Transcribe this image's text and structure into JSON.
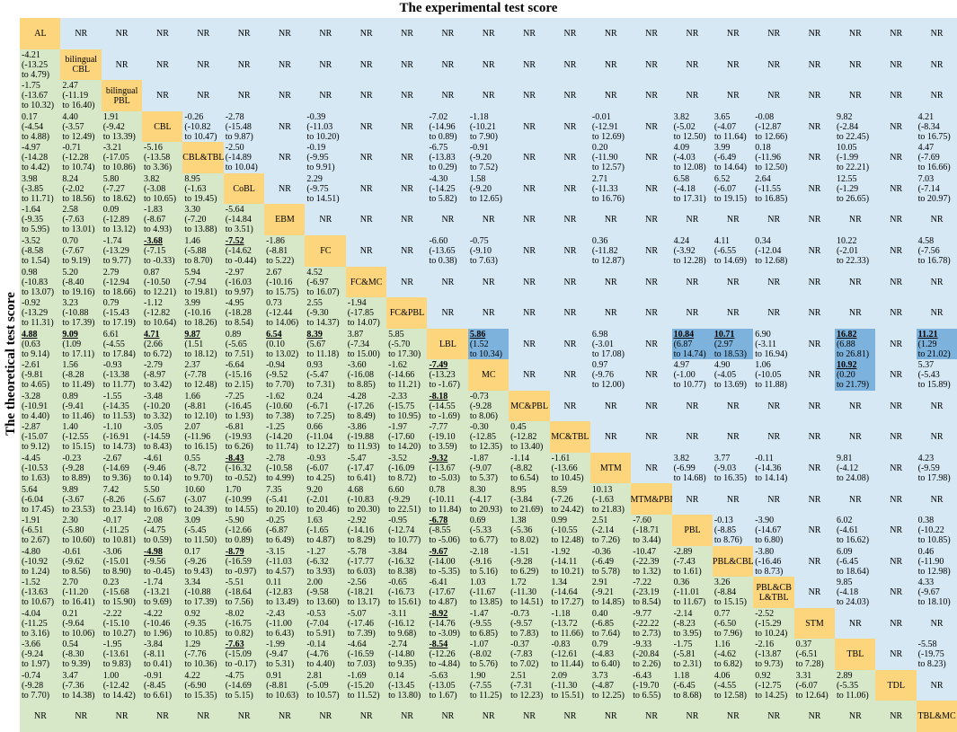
{
  "title": "The experimental test score",
  "ylabel": "The theoretical test score",
  "colors": {
    "diagonal": "#fcd57d",
    "upper": "#d5e8f4",
    "lower": "#d7e8c9",
    "highlight": "#7db2dc"
  },
  "chart_data": {
    "type": "table",
    "treatments": [
      "AL",
      "bilingual CBL",
      "bilingual PBL",
      "CBL",
      "CBL&TBL",
      "CoBL",
      "EBM",
      "FC",
      "FC&MC",
      "FC&PBL",
      "LBL",
      "MC",
      "MC&PBL",
      "MC&TBL",
      "MTM",
      "MTM&PBI",
      "PBL",
      "PBL&CBL",
      "PBL&CBL&TBL",
      "STM",
      "TBL",
      "TDL",
      "TBL&MC"
    ],
    "diagonal_labels": [
      "AL",
      "bilingual\nCBL",
      "bilingual\nPBL",
      "CBL",
      "CBL&TBL",
      "CoBL",
      "EBM",
      "FC",
      "FC&MC",
      "FC&PBL",
      "LBL",
      "MC",
      "MC&PBL",
      "MC&TBL",
      "MTM",
      "MTM&PBI",
      "PBL",
      "PBL&CBL",
      "PBL&CB\nL&TBL",
      "STM",
      "TBL",
      "TDL",
      "TBL&MC"
    ],
    "cells": [
      [
        "AL",
        "NR",
        "NR",
        "NR",
        "NR",
        "NR",
        "NR",
        "NR",
        "NR",
        "NR",
        "NR",
        "NR",
        "NR",
        "NR",
        "NR",
        "NR",
        "NR",
        "NR",
        "NR",
        "NR",
        "NR",
        "NR",
        "NR"
      ],
      [
        "-4.21\n(-13.25\nto 4.79)",
        "bilingual CBL",
        "NR",
        "NR",
        "NR",
        "NR",
        "NR",
        "NR",
        "NR",
        "NR",
        "NR",
        "NR",
        "NR",
        "NR",
        "NR",
        "NR",
        "NR",
        "NR",
        "NR",
        "NR",
        "NR",
        "NR",
        "NR"
      ],
      [
        "-1.75\n(-13.67\nto 10.32)",
        "2.47\n(-11.19\nto 16.40)",
        "bilingual PBL",
        "NR",
        "NR",
        "NR",
        "NR",
        "NR",
        "NR",
        "NR",
        "NR",
        "NR",
        "NR",
        "NR",
        "NR",
        "NR",
        "NR",
        "NR",
        "NR",
        "NR",
        "NR",
        "NR",
        "NR"
      ],
      [
        "0.17\n(-4.54\nto 4.88)",
        "4.40\n(-3.57\nto 12.49)",
        "1.91\n(-9.42\nto 13.39)",
        "CBL",
        "-0.26\n(-10.82\nto 10.47)",
        "-2.78\n(-15.48\nto 9.87)",
        "NR",
        "-0.39\n(-11.03\nto 10.20)",
        "NR",
        "NR",
        "-7.02\n(-14.96\nto 0.89)",
        "-1.18\n(-10.21\nto 7.90)",
        "NR",
        "NR",
        "-0.01\n(-12.91\nto 12.69)",
        "NR",
        "3.82\n(-5.02\nto 12.50)",
        "3.65\n(-4.07\nto 11.64)",
        "-0.08\n(-12.87\nto 12.66)",
        "NR",
        "9.82\n(-2.84\nto 22.45)",
        "NR",
        "4.21\n(-8.34\nto 16.75)"
      ],
      [
        "-4.97\n(-14.28\nto 4.42)",
        "-0.71\n(-12.28\nto 10.74)",
        "-3.21\n(-17.05\nto 10.86)",
        "-5.16\n(-13.58\nto 3.36)",
        "CBL&TBL",
        "-2.50\n(-14.89\nto 10.04)",
        "NR",
        "-0.19\n(-9.95\nto 9.91)",
        "NR",
        "NR",
        "-6.75\n(-13.83\nto 0.29)",
        "-0.91\n(-9.20\nto 7.52)",
        "NR",
        "NR",
        "0.20\n(-11.90\nto 12.57)",
        "NR",
        "4.09\n(-4.03\nto 12.08)",
        "3.99\n(-6.49\nto 14.64)",
        "0.18\n(-11.96\nto 12.50)",
        "NR",
        "10.05\n(-1.99\nto 22.21)",
        "NR",
        "4.47\n(-7.69\nto 16.66)"
      ],
      [
        "3.98\n(-3.85\nto 11.71)",
        "8.24\n(-2.02\nto 18.56)",
        "5.80\n(-7.27\nto 18.62)",
        "3.82\n(-3.08\nto 10.65)",
        "8.95\n(-1.63\nto 19.45)",
        "CoBL",
        "NR",
        "2.29\n(-9.75\nto 14.51)",
        "NR",
        "NR",
        "-4.30\n(-14.25\nto 5.82)",
        "1.58\n(-9.20\nto 12.65)",
        "NR",
        "NR",
        "2.71\n(-11.33\nto 16.76)",
        "NR",
        "6.58\n(-4.18\nto 17.31)",
        "6.52\n(-6.07\nto 19.15)",
        "2.64\n(-11.55\nto 16.85)",
        "NR",
        "12.55\n(-1.29\nto 26.65)",
        "NR",
        "7.03\n(-7.14\nto 20.97)"
      ],
      [
        "-1.64\n(-9.35\nto 5.95)",
        "2.58\n(-7.63\nto 13.01)",
        "0.09\n(-12.89\nto 13.12)",
        "-1.83\n(-8.67\nto 4.93)",
        "3.30\n(-7.20\nto 13.88)",
        "-5.64\n(-14.84\nto 3.51)",
        "EBM",
        "NR",
        "NR",
        "NR",
        "NR",
        "NR",
        "NR",
        "NR",
        "NR",
        "NR",
        "NR",
        "NR",
        "NR",
        "NR",
        "NR",
        "NR",
        "NR"
      ],
      [
        "-3.52\n(-8.58\nto 1.54)",
        "0.70\n(-7.67\nto 9.19)",
        "-1.74\n(-13.29\nto 9.77)",
        "*-3.68\n(-7.15\nto -0.33)",
        "1.46\n(-5.88\nto 8.70)",
        "*-7.52\n(-14.62\nto -0.44)",
        "-1.86\n(-8.81\nto 5.22)",
        "FC",
        "NR",
        "NR",
        "-6.60\n(-13.65\nto 0.38)",
        "-0.75\n(-9.10\nto 7.63)",
        "NR",
        "NR",
        "0.36\n(-11.82\nto 12.87)",
        "NR",
        "4.24\n(-3.92\nto 12.28)",
        "4.11\n(-6.55\nto 14.69)",
        "0.34\n(-12.04\nto 12.68)",
        "NR",
        "10.22\n(-2.01\nto 22.33)",
        "NR",
        "4.58\n(-7.56\nto 16.78)"
      ],
      [
        "0.98\n(-10.83\nto 13.07)",
        "5.20\n(-8.40\nto 19.16)",
        "2.79\n(-12.94\nto 18.66)",
        "0.87\n(-10.50\nto 12.21)",
        "5.94\n(-7.94\nto 19.81)",
        "-2.97\n(-16.03\nto 9.97)",
        "2.67\n(-10.16\nto 15.75)",
        "4.52\n(-6.97\nto 16.07)",
        "FC&MC",
        "NR",
        "NR",
        "NR",
        "NR",
        "NR",
        "NR",
        "NR",
        "NR",
        "NR",
        "NR",
        "NR",
        "NR",
        "NR",
        "NR"
      ],
      [
        "-0.92\n(-13.29\nto 11.31)",
        "3.23\n(-10.88\nto 17.39)",
        "0.79\n(-15.43\nto 17.19)",
        "-1.12\n(-12.82\nto 10.64)",
        "3.99\n(-10.16\nto 18.26)",
        "-4.95\n(-18.28\nto 8.54)",
        "0.73\n(-12.44\nto 14.06)",
        "2.55\n(-9.30\nto 14.37)",
        "-1.94\n(-17.85\nto 14.07)",
        "FC&PBL",
        "NR",
        "NR",
        "NR",
        "NR",
        "NR",
        "NR",
        "NR",
        "NR",
        "NR",
        "NR",
        "NR",
        "NR",
        "NR"
      ],
      [
        "*4.88\n(0.63\nto 9.14)",
        "*9.09\n(1.09\nto 17.11)",
        "6.61\n(-4.55\nto 17.84)",
        "*4.71\n(2.66\nto 6.72)",
        "*9.87\n(1.51\nto 18.12)",
        "0.89\n(-5.65\nto 7.51)",
        "*6.54\n(0.10\nto 13.02)",
        "*8.39\n(5.67\nto 11.18)",
        "3.87\n(-7.34\nto 15.00)",
        "5.85\n(-5.70\nto 17.30)",
        "LBL",
        "#5.86\n(1.52\nto 10.34)",
        "NR",
        "NR",
        "6.98\n(-3.01\nto 17.08)",
        "NR",
        "#10.84\n(6.87\nto 14.74)",
        "#10.71\n(2.97\nto 18.53)",
        "6.90\n(-3.11\nto 16.94)",
        "NR",
        "#16.82\n(6.88\nto 26.81)",
        "NR",
        "#11.21\n(1.29\nto 21.02)"
      ],
      [
        "-2.61\n(-9.81\nto 4.65)",
        "1.56\n(-8.28\nto 11.49)",
        "-0.93\n(-13.38\nto 11.77)",
        "-2.79\n(-8.97\nto 3.42)",
        "2.37\n(-7.78\nto 12.48)",
        "-6.64\n(-15.16\nto 2.15)",
        "-0.94\n(-9.52\nto 7.70)",
        "0.93\n(-5.47\nto 7.31)",
        "-3.60\n(-16.08\nto 8.85)",
        "-1.62\n(-14.66\nto 11.21)",
        "*-7.49\n(-13.23\nto -1.67)",
        "MC",
        "NR",
        "NR",
        "0.97\n(-9.76\nto 12.00)",
        "NR",
        "4.97\n(-1.00\nto 10.77)",
        "4.90\n(-4.05\nto 13.69)",
        "1.06\n(-10.05\nto 11.88)",
        "NR",
        "#10.92\n(0.20\nto 21.79)",
        "NR",
        "5.37\n(-5.43\nto 15.89)"
      ],
      [
        "-3.28\n(-10.91\nto 4.40)",
        "0.89\n(-9.41\nto 11.46)",
        "-1.55\n(-14.35\nto 11.53)",
        "-3.48\n(-10.20\nto 3.32)",
        "1.66\n(-8.81\nto 12.10)",
        "-7.25\n(-16.45\nto 1.93)",
        "-1.62\n(-10.60\nto 7.38)",
        "0.24\n(-6.71\nto 7.25)",
        "-4.28\n(-17.26\nto 8.49)",
        "-2.33\n(-15.75\nto 10.95)",
        "*-8.18\n(-14.55\nto -1.69)",
        "-0.73\n(-9.28\nto 8.06)",
        "MC&PBL",
        "NR",
        "NR",
        "NR",
        "NR",
        "NR",
        "NR",
        "NR",
        "NR",
        "NR",
        "NR"
      ],
      [
        "-2.87\n(-15.07\nto 9.12)",
        "1.40\n(-12.55\nto 15.15)",
        "-1.10\n(-16.91\nto 14.73)",
        "-3.05\n(-14.59\nto 8.43)",
        "2.07\n(-11.96\nto 16.15)",
        "-6.81\n(-19.93\nto 6.26)",
        "-1.25\n(-14.20\nto 11.74)",
        "0.66\n(-11.04\nto 12.27)",
        "-3.86\n(-19.88\nto 11.93)",
        "-1.97\n(-17.60\nto 14.20)",
        "-7.77\n(-19.10\nto 3.59)",
        "-0.30\n(-12.85\nto 12.35)",
        "0.45\n(-12.82\nto 13.40)",
        "MC&TBL",
        "NR",
        "NR",
        "NR",
        "NR",
        "NR",
        "NR",
        "NR",
        "NR",
        "NR"
      ],
      [
        "-4.45\n(-10.53\nto 1.63)",
        "-0.23\n(-9.28\nto 8.89)",
        "-2.67\n(-14.69\nto 9.36)",
        "-4.61\n(-9.46\nto 0.14)",
        "0.55\n(-8.72\nto 9.70)",
        "*-8.43\n(-16.32\nto -0.52)",
        "-2.78\n(-10.58\nto 4.99)",
        "-0.93\n(-6.07\nto 4.25)",
        "-5.47\n(-17.47\nto 6.41)",
        "-3.52\n(-16.09\nto 8.72)",
        "*-9.32\n(-13.67\nto -5.03)",
        "-1.87\n(-9.07\nto 5.37)",
        "-1.14\n(-8.82\nto 6.54)",
        "-1.61\n(-13.66\nto 10.45)",
        "MTM",
        "NR",
        "3.82\n(-6.99\nto 14.68)",
        "3.77\n(-9.03\nto 16.35)",
        "-0.11\n(-14.36\nto 14.14)",
        "NR",
        "9.81\n(-4.12\nto 24.08)",
        "NR",
        "4.23\n(-9.59\nto 17.98)"
      ],
      [
        "5.64\n(-6.04\nto 17.45)",
        "9.89\n(-3.67\nto 23.53)",
        "7.42\n(-8.26\nto 23.14)",
        "5.50\n(-5.67\nto 16.67)",
        "10.60\n(-3.07\nto 24.39)",
        "1.70\n(-10.99\nto 14.55)",
        "7.35\n(-5.41\nto 20.10)",
        "9.20\n(-2.01\nto 20.46)",
        "4.68\n(-10.83\nto 20.30)",
        "6.60\n(-9.29\nto 22.51)",
        "0.78\n(-10.11\nto 11.84)",
        "8.30\n(-4.17\nto 20.93)",
        "8.95\n(-3.84\nto 21.69)",
        "8.59\n(-7.26\nto 24.42)",
        "10.13\n(-1.63\nto 21.83)",
        "MTM&PBI",
        "NR",
        "NR",
        "NR",
        "NR",
        "NR",
        "NR",
        "NR"
      ],
      [
        "-1.91\n(-6.51\nto 2.67)",
        "2.30\n(-5.80\nto 10.60)",
        "-0.17\n(-11.25\nto 10.81)",
        "-2.08\n(-4.75\nto 0.59)",
        "3.09\n(-5.45\nto 11.50)",
        "-5.90\n(-12.66\nto 0.89)",
        "-0.25\n(-6.87\nto 6.49)",
        "1.63\n(-1.65\nto 4.87)",
        "-2.92\n(-14.16\nto 8.29)",
        "-0.95\n(-12.74\nto 10.77)",
        "*-6.78\n(-8.55\nto -5.06)",
        "0.69\n(-5.33\nto 6.77)",
        "1.38\n(-5.36\nto 8.02)",
        "0.99\n(-10.55\nto 12.48)",
        "2.51\n(-2.14\nto 7.26)",
        "-7.60\n(-18.71\nto 3.44)",
        "PBL",
        "-0.13\n(-8.85\nto 8.76)",
        "-3.90\n(-14.67\nto 6.80)",
        "NR",
        "6.02\n(-4.61\nto 16.62)",
        "NR",
        "0.38\n(-10.22\nto 10.85)"
      ],
      [
        "-4.80\n(-10.92\nto 1.24)",
        "-0.61\n(-9.62\nto 8.56)",
        "-3.06\n(-15.01\nto 8.90)",
        "*-4.98\n(-9.56\nto -0.45)",
        "0.17\n(-9.26\nto 9.43)",
        "*-8.79\n(-16.59\nto -0.97)",
        "-3.15\n(-11.03\nto 4.57)",
        "-1.27\n(-6.32\nto 3.93)",
        "-5.78\n(-17.77\nto 6.03)",
        "-3.84\n(-16.32\nto 8.38)",
        "*-9.67\n(-14.00\nto -5.35)",
        "-2.18\n(-9.16\nto 5.16)",
        "-1.51\n(-9.28\nto 6.29)",
        "-1.92\n(-14.11\nto 10.21)",
        "-0.36\n(-6.49\nto 5.78)",
        "-10.47\n(-22.39\nto 1.32)",
        "-2.89\n(-7.43\nto 1.61)",
        "PBL&CBL",
        "-3.80\n(-16.46\nto 8.73)",
        "NR",
        "6.09\n(-6.45\nto 18.64)",
        "NR",
        "0.46\n(-11.90\nto 12.98)"
      ],
      [
        "-1.52\n(-13.63\nto 10.67)",
        "2.70\n(-11.20\nto 16.41)",
        "0.23\n(-15.68\nto 15.90)",
        "-1.74\n(-13.21\nto 9.69)",
        "3.34\n(-10.88\nto 17.39)",
        "-5.51\n(-18.64\nto 7.56)",
        "0.11\n(-12.83\nto 13.49)",
        "2.00\n(-9.58\nto 13.60)",
        "-2.56\n(-18.21\nto 13.17)",
        "-0.65\n(-16.73\nto 15.61)",
        "-6.41\n(-17.67\nto 4.87)",
        "1.03\n(-11.67\nto 13.85)",
        "1.72\n(-11.30\nto 14.51)",
        "1.34\n(-14.64\nto 17.27)",
        "2.91\n(-9.21\nto 14.85)",
        "-7.22\n(-23.19\nto 8.54)",
        "0.36\n(-11.01\nto 11.67)",
        "3.26\n(-8.84\nto 15.15)",
        "PBL&CBL&TBL",
        "NR",
        "9.85\n(-4.18\nto 24.03)",
        "NR",
        "4.33\n(-9.67\nto 18.10)"
      ],
      [
        "-4.04\n(-11.25\nto 3.16)",
        "0.21\n(-9.64\nto 10.06)",
        "-2.22\n(-15.10\nto 10.27)",
        "-4.22\n(-10.46\nto 1.96)",
        "0.92\n(-9.35\nto 10.85)",
        "-8.02\n(-16.75\nto 0.82)",
        "-2.43\n(-11.00\nto 6.43)",
        "-0.53\n(-7.04\nto 5.91)",
        "-5.07\n(-17.46\nto 7.39)",
        "-3.11\n(-16.12\nto 9.68)",
        "*-8.92\n(-14.76\nto -3.09)",
        "-1.47\n(-9.55\nto 6.85)",
        "-0.73\n(-9.57\nto 7.83)",
        "-1.18\n(-13.72\nto 11.66)",
        "0.40\n(-6.85\nto 7.64)",
        "-9.77\n(-22.22\nto 2.73)",
        "-2.14\n(-8.23\nto 3.95)",
        "0.77\n(-6.50\nto 7.96)",
        "-2.52\n(-15.29\nto 10.24)",
        "STM",
        "NR",
        "NR",
        "NR"
      ],
      [
        "-3.66\n(-9.24\nto 1.97)",
        "0.54\n(-8.30\nto 9.39)",
        "-1.95\n(-13.61\nto 9.83)",
        "-3.84\n(-8.11\nto 0.41)",
        "1.29\n(-7.76\nto 10.36)",
        "*-7.63\n(-15.09\nto -0.17)",
        "-1.99\n(-9.47\nto 5.31)",
        "-0.14\n(-4.76\nto 4.40)",
        "-4.64\n(-16.59\nto 7.03)",
        "-2.74\n(-14.80\nto 9.35)",
        "*-8.54\n(-12.26\nto -4.84)",
        "-1.07\n(-8.02\nto 5.76)",
        "-0.37\n(-7.83\nto 7.02)",
        "-0.83\n(-12.61\nto 11.44)",
        "0.79\n(-4.83\nto 6.40)",
        "-9.33\n(-20.84\nto 2.26)",
        "-1.75\n(-5.81\nto 2.31)",
        "1.16\n(-4.62\nto 6.82)",
        "-2.16\n(-13.87\nto 9.73)",
        "0.37\n(-6.51\nto 7.28)",
        "TBL",
        "NR",
        "-5.58\n(-19.75\nto 8.23)"
      ],
      [
        "-0.74\n(-9.28\nto 7.70)",
        "3.47\n(-7.36\nto 14.38)",
        "1.00\n(-12.42\nto 14.42)",
        "-0.91\n(-8.45\nto 6.61)",
        "4.22\n(-6.90\nto 15.35)",
        "-4.75\n(-14.69\nto 5.15)",
        "0.91\n(-8.81\nto 10.63)",
        "2.81\n(-5.09\nto 10.57)",
        "-1.69\n(-15.20\nto 11.52)",
        "0.14\n(-13.45\nto 13.80)",
        "-5.63\n(-13.05\nto 1.67)",
        "1.90\n(-7.55\nto 11.25)",
        "2.51\n(-7.31\nto 12.23)",
        "2.09\n(-11.30\nto 15.51)",
        "3.73\n(-4.87\nto 12.25)",
        "-6.43\n(-19.70\nto 6.55)",
        "1.18\n(-6.45\nto 8.68)",
        "4.06\n(-4.55\nto 12.58)",
        "0.92\n(-12.75\nto 14.25)",
        "3.31\n(-6.07\nto 12.64)",
        "2.89\n(-5.35\nto 11.06)",
        "TDL",
        "NR"
      ],
      [
        "NR",
        "NR",
        "NR",
        "NR",
        "NR",
        "NR",
        "NR",
        "NR",
        "NR",
        "NR",
        "NR",
        "NR",
        "NR",
        "NR",
        "NR",
        "NR",
        "NR",
        "NR",
        "NR",
        "NR",
        "NR",
        "NR",
        "TBL&MC"
      ]
    ]
  }
}
